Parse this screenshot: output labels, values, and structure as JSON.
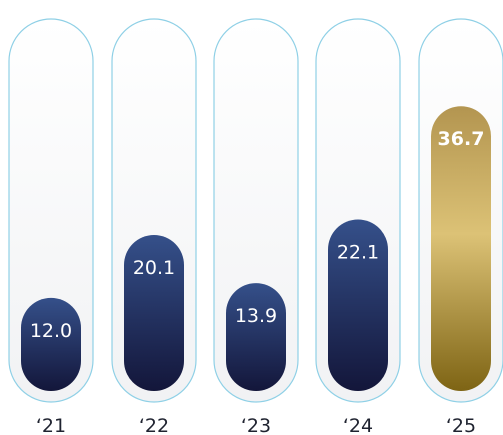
{
  "chart_data": {
    "type": "bar",
    "categories": [
      "‘21",
      "‘22",
      "‘23",
      "‘24",
      "‘25"
    ],
    "values": [
      12.0,
      20.1,
      13.9,
      22.1,
      36.7
    ],
    "value_labels": [
      "12.0",
      "20.1",
      "13.9",
      "22.1",
      "36.7"
    ],
    "highlight_index": 4,
    "ylim": [
      0,
      40
    ],
    "grid": false,
    "colors": {
      "bar_top": "#35508a",
      "bar_bottom": "#13163a",
      "highlight_top": "#b39550",
      "highlight_mid": "#dcc276",
      "highlight_bottom": "#7e6414",
      "track_border": "#8fd0e6",
      "track_fill_top": "#ffffff",
      "track_fill_bottom": "#f1f2f4",
      "tick_text": "#1f2330"
    }
  }
}
